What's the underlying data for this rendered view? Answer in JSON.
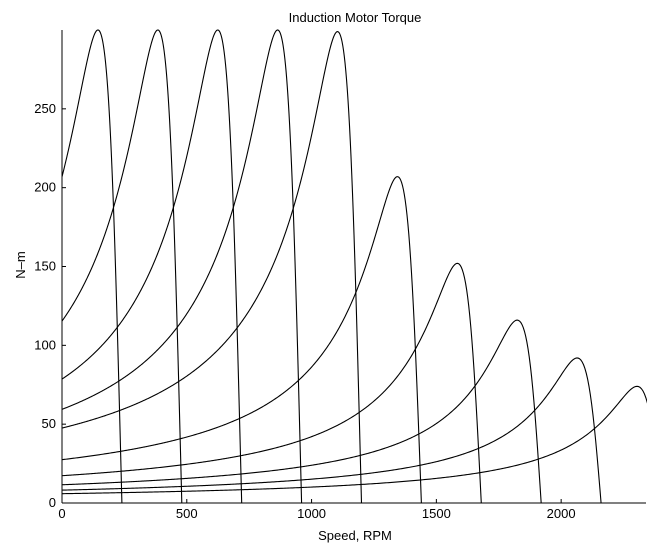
{
  "chart_data": {
    "type": "line",
    "title": "Induction Motor Torque",
    "xlabel": "Speed, RPM",
    "ylabel": "N–m",
    "xlim": [
      0,
      2340
    ],
    "ylim": [
      0,
      300
    ],
    "xticks": [
      0,
      500,
      1000,
      1500,
      2000
    ],
    "yticks": [
      0,
      50,
      100,
      150,
      200,
      250
    ],
    "grid": false,
    "legend": "none",
    "line_color": "#000000",
    "series": [
      {
        "sync_speed": 240,
        "peak_speed": 144,
        "peak_torque": 300,
        "start_torque": 212
      },
      {
        "sync_speed": 480,
        "peak_speed": 384,
        "peak_torque": 300,
        "start_torque": 119
      },
      {
        "sync_speed": 720,
        "peak_speed": 624,
        "peak_torque": 300,
        "start_torque": 82
      },
      {
        "sync_speed": 960,
        "peak_speed": 864,
        "peak_torque": 300,
        "start_torque": 62
      },
      {
        "sync_speed": 1200,
        "peak_speed": 1104,
        "peak_torque": 299,
        "start_torque": 50
      },
      {
        "sync_speed": 1440,
        "peak_speed": 1344,
        "peak_torque": 207,
        "start_torque": 29
      },
      {
        "sync_speed": 1680,
        "peak_speed": 1584,
        "peak_torque": 152,
        "start_torque": 18
      },
      {
        "sync_speed": 1920,
        "peak_speed": 1824,
        "peak_torque": 116,
        "start_torque": 12
      },
      {
        "sync_speed": 2160,
        "peak_speed": 2064,
        "peak_torque": 92,
        "start_torque": 9
      },
      {
        "sync_speed": 2400,
        "peak_speed": 2304,
        "peak_torque": 74,
        "start_torque": 6
      }
    ]
  }
}
